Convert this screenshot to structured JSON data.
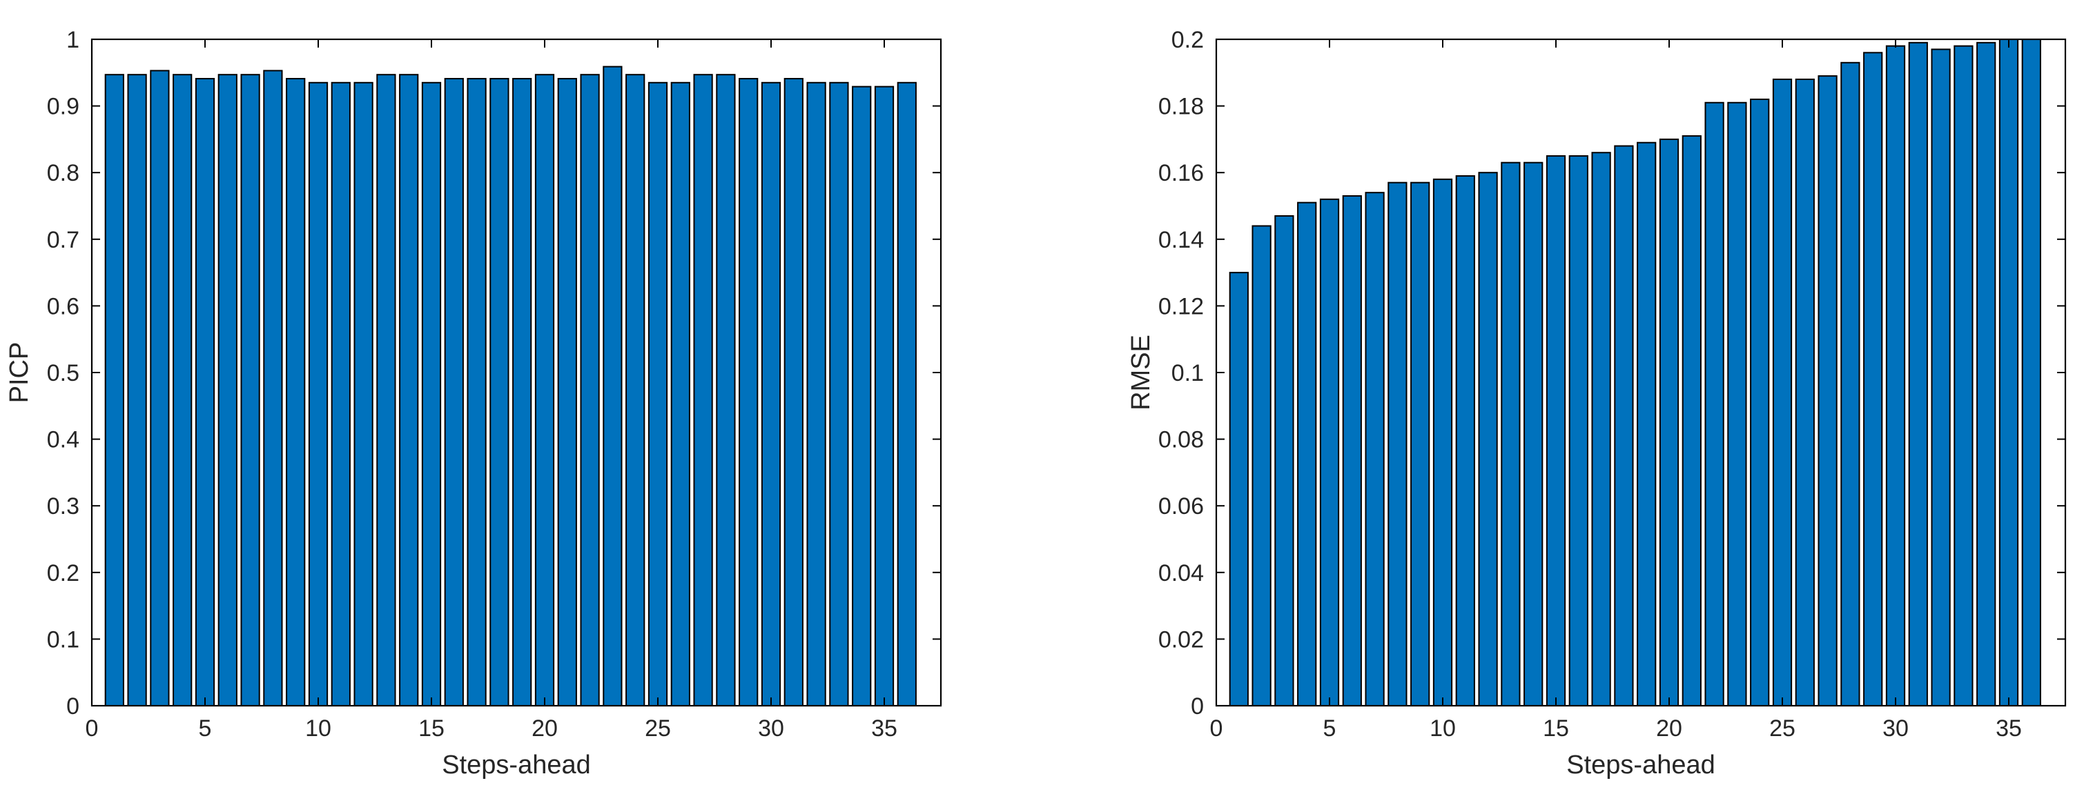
{
  "colors": {
    "bar": "#0072BD",
    "bar_edge": "#000000",
    "axis": "#000000",
    "text": "#262626"
  },
  "chart_data": [
    {
      "type": "bar",
      "xlabel": "Steps-ahead",
      "ylabel": "PICP",
      "xlim": [
        0,
        37.5
      ],
      "ylim": [
        0,
        1
      ],
      "xticks": [
        0,
        5,
        10,
        15,
        20,
        25,
        30,
        35
      ],
      "yticks": [
        0,
        0.1,
        0.2,
        0.3,
        0.4,
        0.5,
        0.6,
        0.7,
        0.8,
        0.9,
        1
      ],
      "x": [
        1,
        2,
        3,
        4,
        5,
        6,
        7,
        8,
        9,
        10,
        11,
        12,
        13,
        14,
        15,
        16,
        17,
        18,
        19,
        20,
        21,
        22,
        23,
        24,
        25,
        26,
        27,
        28,
        29,
        30,
        31,
        32,
        33,
        34,
        35,
        36
      ],
      "values": [
        0.947,
        0.947,
        0.953,
        0.947,
        0.941,
        0.947,
        0.947,
        0.953,
        0.941,
        0.935,
        0.935,
        0.935,
        0.947,
        0.947,
        0.935,
        0.941,
        0.941,
        0.941,
        0.941,
        0.947,
        0.941,
        0.947,
        0.959,
        0.947,
        0.935,
        0.935,
        0.947,
        0.947,
        0.941,
        0.935,
        0.941,
        0.935,
        0.935,
        0.929,
        0.929,
        0.935
      ]
    },
    {
      "type": "bar",
      "xlabel": "Steps-ahead",
      "ylabel": "RMSE",
      "xlim": [
        0,
        37.5
      ],
      "ylim": [
        0,
        0.2
      ],
      "xticks": [
        0,
        5,
        10,
        15,
        20,
        25,
        30,
        35
      ],
      "yticks": [
        0,
        0.02,
        0.04,
        0.06,
        0.08,
        0.1,
        0.12,
        0.14,
        0.16,
        0.18,
        0.2
      ],
      "x": [
        1,
        2,
        3,
        4,
        5,
        6,
        7,
        8,
        9,
        10,
        11,
        12,
        13,
        14,
        15,
        16,
        17,
        18,
        19,
        20,
        21,
        22,
        23,
        24,
        25,
        26,
        27,
        28,
        29,
        30,
        31,
        32,
        33,
        34,
        35,
        36
      ],
      "values": [
        0.13,
        0.144,
        0.147,
        0.151,
        0.152,
        0.153,
        0.154,
        0.157,
        0.157,
        0.158,
        0.159,
        0.16,
        0.163,
        0.163,
        0.165,
        0.165,
        0.166,
        0.168,
        0.169,
        0.17,
        0.171,
        0.181,
        0.181,
        0.182,
        0.188,
        0.188,
        0.189,
        0.193,
        0.196,
        0.198,
        0.199,
        0.197,
        0.198,
        0.199,
        0.2,
        0.2
      ]
    }
  ]
}
